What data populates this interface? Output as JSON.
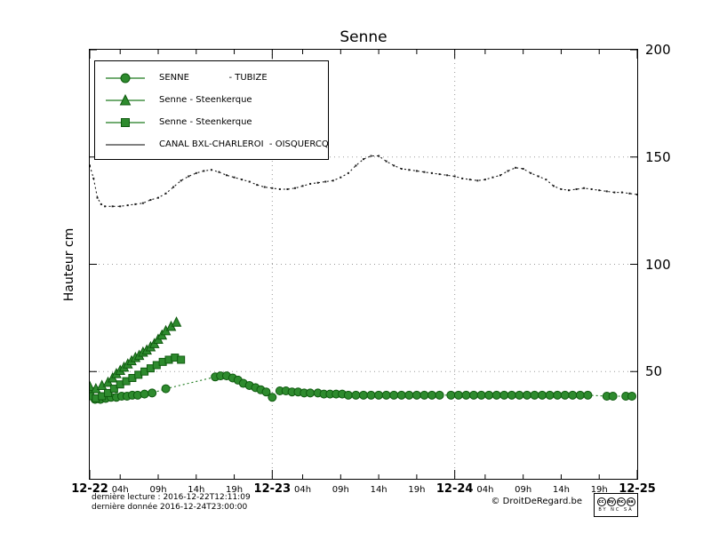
{
  "title": "Senne",
  "ylabel": "Hauteur cm",
  "legend": {
    "items": [
      {
        "label": "SENNE              - TUBIZE",
        "marker": "circle"
      },
      {
        "label": "Senne - Steenkerque",
        "marker": "triangle"
      },
      {
        "label": "Senne - Steenkerque",
        "marker": "square"
      },
      {
        "label": "CANAL BXL-CHARLEROI  - OISQUERCQ",
        "marker": "line"
      }
    ]
  },
  "footer": {
    "line1": "dernière lecture : 2016-12-22T12:11:09",
    "line2": "dernière donnée  2016-12-24T23:00:00",
    "copyright": "© DroitDeRegard.be",
    "cc_circles": [
      "cc",
      "by",
      "nc",
      "sa"
    ],
    "cc_caption": "BY NC SA"
  },
  "chart_data": {
    "type": "line",
    "title": "Senne",
    "xlabel": "",
    "ylabel": "Hauteur cm",
    "ylim": [
      0,
      200
    ],
    "xlim_hours": [
      0,
      72
    ],
    "grid": true,
    "legend_position": "top-left",
    "yticks": [
      50,
      100,
      150,
      200
    ],
    "grid_y": [
      50,
      100,
      150
    ],
    "grid_x_t": [
      24,
      48
    ],
    "x_day_labels": [
      {
        "label": "12-22",
        "t": 0
      },
      {
        "label": "12-23",
        "t": 24
      },
      {
        "label": "12-24",
        "t": 48
      },
      {
        "label": "12-25",
        "t": 72
      }
    ],
    "x_hour_labels": [
      {
        "label": "04h",
        "t": 4
      },
      {
        "label": "09h",
        "t": 9
      },
      {
        "label": "14h",
        "t": 14
      },
      {
        "label": "19h",
        "t": 19
      },
      {
        "label": "04h",
        "t": 28
      },
      {
        "label": "09h",
        "t": 33
      },
      {
        "label": "14h",
        "t": 38
      },
      {
        "label": "19h",
        "t": 43
      },
      {
        "label": "04h",
        "t": 52
      },
      {
        "label": "09h",
        "t": 57
      },
      {
        "label": "14h",
        "t": 62
      },
      {
        "label": "19h",
        "t": 67
      }
    ],
    "series": [
      {
        "name": "CANAL BXL-CHARLEROI - OISQUERCQ",
        "marker": "dot",
        "line": "dotted",
        "color": "#1a1a1a",
        "fill": "#1a1a1a",
        "stroke": "#1a1a1a",
        "points": [
          [
            0,
            146
          ],
          [
            0.5,
            140
          ],
          [
            1,
            131
          ],
          [
            1.5,
            128
          ],
          [
            2,
            127
          ],
          [
            3,
            127
          ],
          [
            4,
            127
          ],
          [
            5,
            127.5
          ],
          [
            6,
            128
          ],
          [
            7,
            128.5
          ],
          [
            8,
            130
          ],
          [
            9,
            131
          ],
          [
            10,
            133
          ],
          [
            11,
            136
          ],
          [
            12,
            139
          ],
          [
            13,
            141
          ],
          [
            14,
            142.5
          ],
          [
            15,
            143.5
          ],
          [
            16,
            144
          ],
          [
            17,
            143
          ],
          [
            18,
            141.5
          ],
          [
            19,
            140.5
          ],
          [
            20,
            139.5
          ],
          [
            21,
            138.5
          ],
          [
            22,
            137
          ],
          [
            23,
            136
          ],
          [
            24,
            135.5
          ],
          [
            25,
            135
          ],
          [
            26,
            135
          ],
          [
            27,
            135.5
          ],
          [
            28,
            136.5
          ],
          [
            29,
            137.5
          ],
          [
            30,
            138
          ],
          [
            31,
            138.5
          ],
          [
            32,
            139
          ],
          [
            33,
            140.5
          ],
          [
            34,
            142.5
          ],
          [
            35,
            146
          ],
          [
            36,
            149
          ],
          [
            37,
            150.5
          ],
          [
            38,
            150.5
          ],
          [
            39,
            148
          ],
          [
            40,
            146
          ],
          [
            41,
            144.5
          ],
          [
            42,
            144
          ],
          [
            43,
            143.5
          ],
          [
            44,
            143
          ],
          [
            45,
            142.5
          ],
          [
            46,
            142
          ],
          [
            47,
            141.5
          ],
          [
            48,
            141
          ],
          [
            49,
            140
          ],
          [
            50,
            139.5
          ],
          [
            51,
            139
          ],
          [
            52,
            139.5
          ],
          [
            53,
            140.5
          ],
          [
            54,
            141.5
          ],
          [
            55,
            143.5
          ],
          [
            56,
            145
          ],
          [
            57,
            144.5
          ],
          [
            58,
            142.5
          ],
          [
            59,
            141
          ],
          [
            60,
            139.5
          ],
          [
            61,
            136.5
          ],
          [
            62,
            135
          ],
          [
            63,
            134.5
          ],
          [
            64,
            135
          ],
          [
            65,
            135.5
          ],
          [
            66,
            135
          ],
          [
            67,
            134.5
          ],
          [
            68,
            134
          ],
          [
            69,
            133.5
          ],
          [
            70,
            133.5
          ],
          [
            71,
            133
          ],
          [
            72,
            132.5
          ]
        ]
      },
      {
        "name": "SENNE - TUBIZE",
        "marker": "circle",
        "line": "dotted",
        "color": "#1d7a1d",
        "fill": "#2e8b2e",
        "stroke": "#0f5a0f",
        "points": [
          [
            0,
            40
          ],
          [
            0.7,
            37
          ],
          [
            1.4,
            37
          ],
          [
            2.1,
            37.5
          ],
          [
            2.8,
            38
          ],
          [
            3.5,
            38
          ],
          [
            4.2,
            38.5
          ],
          [
            4.9,
            38.5
          ],
          [
            5.6,
            39
          ],
          [
            6.3,
            39
          ],
          [
            7.2,
            39.5
          ],
          [
            8.2,
            40
          ],
          [
            10,
            42
          ],
          [
            16.5,
            47.5
          ],
          [
            17.2,
            48
          ],
          [
            18,
            48
          ],
          [
            18.8,
            47
          ],
          [
            19.5,
            46
          ],
          [
            20.2,
            44.5
          ],
          [
            21,
            43.5
          ],
          [
            21.8,
            42.5
          ],
          [
            22.5,
            41.5
          ],
          [
            23.2,
            40.5
          ],
          [
            24,
            38
          ],
          [
            25,
            41
          ],
          [
            25.8,
            41
          ],
          [
            26.6,
            40.5
          ],
          [
            27.4,
            40.5
          ],
          [
            28.2,
            40
          ],
          [
            29,
            40
          ],
          [
            30,
            40
          ],
          [
            30.8,
            39.5
          ],
          [
            31.6,
            39.5
          ],
          [
            32.4,
            39.5
          ],
          [
            33.2,
            39.5
          ],
          [
            34,
            39
          ],
          [
            35,
            39
          ],
          [
            36,
            39
          ],
          [
            37,
            39
          ],
          [
            38,
            39
          ],
          [
            39,
            39
          ],
          [
            40,
            39
          ],
          [
            41,
            39
          ],
          [
            42,
            39
          ],
          [
            43,
            39
          ],
          [
            44,
            39
          ],
          [
            45,
            39
          ],
          [
            46,
            39
          ],
          [
            47.5,
            39
          ],
          [
            48.5,
            39
          ],
          [
            49.5,
            39
          ],
          [
            50.5,
            39
          ],
          [
            51.5,
            39
          ],
          [
            52.5,
            39
          ],
          [
            53.5,
            39
          ],
          [
            54.5,
            39
          ],
          [
            55.5,
            39
          ],
          [
            56.5,
            39
          ],
          [
            57.5,
            39
          ],
          [
            58.5,
            39
          ],
          [
            59.5,
            39
          ],
          [
            60.5,
            39
          ],
          [
            61.5,
            39
          ],
          [
            62.5,
            39
          ],
          [
            63.5,
            39
          ],
          [
            64.5,
            39
          ],
          [
            65.5,
            39
          ],
          [
            68,
            38.5
          ],
          [
            68.8,
            38.5
          ],
          [
            70.5,
            38.5
          ],
          [
            71.3,
            38.5
          ]
        ]
      },
      {
        "name": "Senne - Steenkerque (triangles)",
        "marker": "triangle",
        "line": "solid",
        "color": "#1d7a1d",
        "fill": "#2e8b2e",
        "stroke": "#0f5a0f",
        "points": [
          [
            0,
            43
          ],
          [
            0.8,
            42
          ],
          [
            1.6,
            43.5
          ],
          [
            2.4,
            45
          ],
          [
            3,
            47
          ],
          [
            3.5,
            49
          ],
          [
            4,
            50.5
          ],
          [
            4.5,
            52
          ],
          [
            5,
            53.5
          ],
          [
            5.5,
            55
          ],
          [
            6,
            56.5
          ],
          [
            6.5,
            57.5
          ],
          [
            7,
            59
          ],
          [
            7.5,
            60
          ],
          [
            8,
            61.5
          ],
          [
            8.5,
            63
          ],
          [
            9,
            65
          ],
          [
            9.5,
            67
          ],
          [
            10,
            69
          ],
          [
            10.7,
            71
          ],
          [
            11.4,
            73
          ]
        ]
      },
      {
        "name": "Senne - Steenkerque (squares)",
        "marker": "square",
        "line": "solid",
        "color": "#1d7a1d",
        "fill": "#2e8b2e",
        "stroke": "#0f5a0f",
        "points": [
          [
            0,
            38.5
          ],
          [
            0.8,
            37.5
          ],
          [
            1.6,
            38.5
          ],
          [
            2.4,
            40
          ],
          [
            3.2,
            42
          ],
          [
            4,
            44
          ],
          [
            4.8,
            45.5
          ],
          [
            5.6,
            47
          ],
          [
            6.4,
            48.5
          ],
          [
            7.2,
            50
          ],
          [
            8,
            51.5
          ],
          [
            8.8,
            53
          ],
          [
            9.6,
            54.5
          ],
          [
            10.4,
            55.5
          ],
          [
            11.2,
            56.5
          ],
          [
            12,
            55.5
          ]
        ]
      }
    ]
  }
}
